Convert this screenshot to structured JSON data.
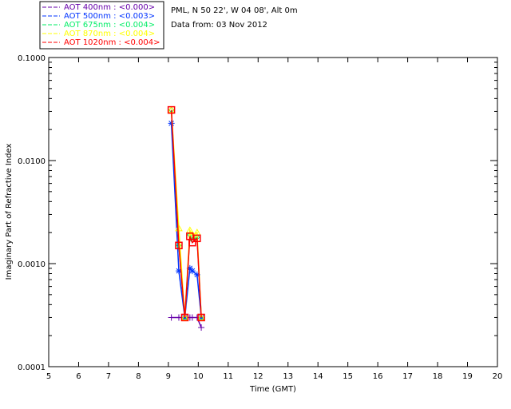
{
  "chart_data": {
    "type": "line",
    "title": "PML, N 50 22', W 04 08', Alt 0m",
    "subtitle": "Data from: 03 Nov 2012",
    "xlabel": "Time (GMT)",
    "ylabel": "Imaginary Part of Refractive Index",
    "xlim": [
      5,
      20
    ],
    "ylim": [
      0.0001,
      0.1
    ],
    "yscale": "log",
    "xticks": [
      "5",
      "6",
      "7",
      "8",
      "9",
      "10",
      "11",
      "12",
      "13",
      "14",
      "15",
      "16",
      "17",
      "18",
      "19",
      "20"
    ],
    "yticks": [
      "0.0001",
      "0.0010",
      "0.0100",
      "0.1000"
    ],
    "legend_position": "top-left",
    "x": [
      9.1,
      9.35,
      9.55,
      9.72,
      9.8,
      9.96,
      10.1
    ],
    "series": [
      {
        "name": "AOT  400nm : <0.000>",
        "color": "#6600aa",
        "marker": "plus",
        "values": [
          0.0003,
          0.0003,
          0.0003,
          0.0003,
          0.0003,
          0.0003,
          0.00024
        ]
      },
      {
        "name": "AOT  500nm : <0.003>",
        "color": "#0033ff",
        "marker": "asterisk",
        "values": [
          0.023,
          0.00085,
          0.0003,
          0.0009,
          0.00085,
          0.00078,
          0.0003
        ]
      },
      {
        "name": "AOT  675nm : <0.004>",
        "color": "#00ee66",
        "marker": "diamond",
        "values": [
          0.031,
          0.0015,
          0.0003,
          0.0019,
          0.0017,
          0.0018,
          0.0003
        ]
      },
      {
        "name": "AOT  870nm : <0.004>",
        "color": "#ffff00",
        "marker": "triangle",
        "values": [
          0.031,
          0.0022,
          0.0003,
          0.0021,
          0.0019,
          0.002,
          0.0003
        ]
      },
      {
        "name": "AOT 1020nm : <0.004>",
        "color": "#ff0000",
        "marker": "square",
        "values": [
          0.031,
          0.0015,
          0.0003,
          0.00184,
          0.0016,
          0.00176,
          0.0003
        ]
      }
    ]
  }
}
